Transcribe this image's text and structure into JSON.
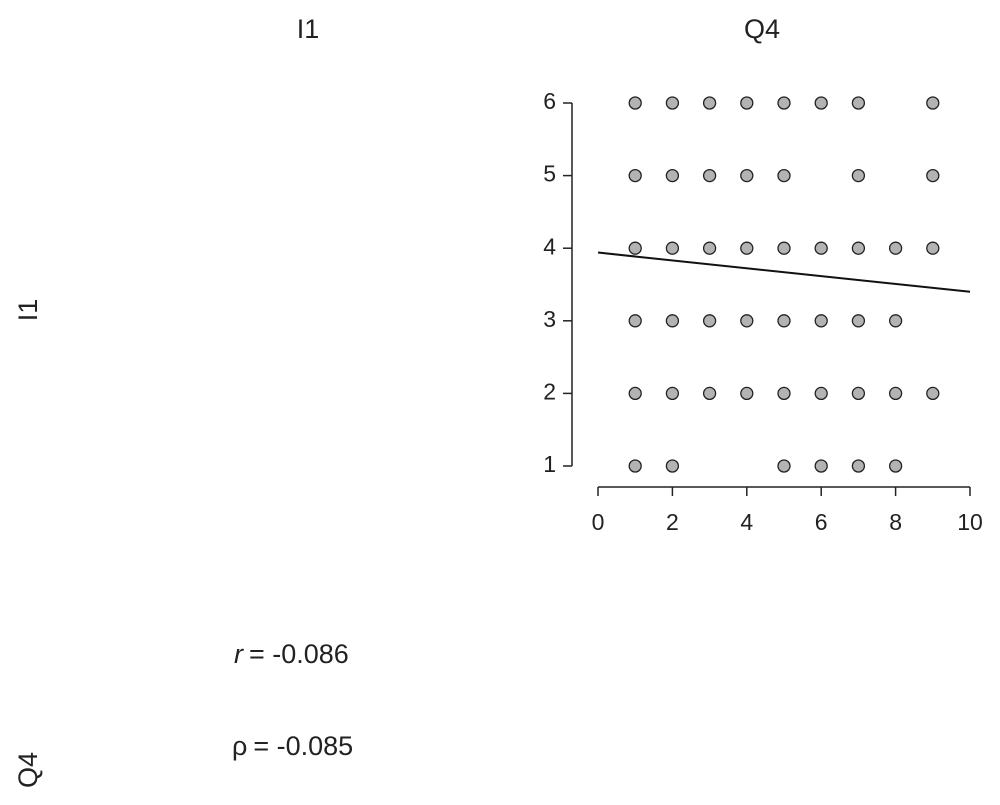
{
  "chart_data": {
    "type": "scatter",
    "column_labels": [
      "I1",
      "Q4"
    ],
    "row_labels": [
      "I1",
      "Q4"
    ],
    "x": [
      1,
      2,
      3,
      4,
      5,
      6,
      7,
      9,
      1,
      2,
      3,
      4,
      5,
      7,
      9,
      1,
      2,
      3,
      4,
      5,
      6,
      7,
      8,
      9,
      1,
      2,
      3,
      4,
      5,
      6,
      7,
      8,
      1,
      2,
      3,
      4,
      5,
      6,
      7,
      8,
      9,
      1,
      2,
      5,
      6,
      7,
      8
    ],
    "series": [
      {
        "color": "#b3b3b3",
        "values": [
          6,
          6,
          6,
          6,
          6,
          6,
          6,
          6,
          5,
          5,
          5,
          5,
          5,
          5,
          5,
          4,
          4,
          4,
          4,
          4,
          4,
          4,
          4,
          4,
          3,
          3,
          3,
          3,
          3,
          3,
          3,
          3,
          2,
          2,
          2,
          2,
          2,
          2,
          2,
          2,
          2,
          1,
          1,
          1,
          1,
          1,
          1
        ]
      }
    ],
    "fit_line": {
      "x": [
        0,
        10
      ],
      "y": [
        3.94,
        3.4
      ]
    },
    "xlim": [
      0,
      10
    ],
    "xticks": [
      0,
      2,
      4,
      6,
      8,
      10
    ],
    "ylim": [
      1,
      6
    ],
    "yticks": [
      1,
      2,
      3,
      4,
      5,
      6
    ],
    "annotations": [
      {
        "symbol": "r",
        "text": "= -0.086"
      },
      {
        "symbol": "ρ",
        "text": "= -0.085"
      }
    ]
  }
}
